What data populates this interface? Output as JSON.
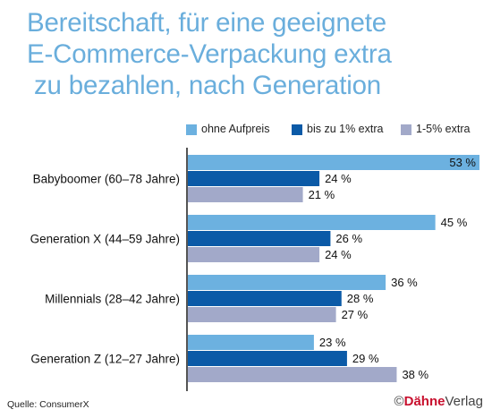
{
  "title_lines": [
    "Bereitschaft, für eine geeignete",
    "E-Commerce-Verpackung extra",
    "zu bezahlen, nach Generation"
  ],
  "source": "Quelle: ConsumerX",
  "brand": {
    "copyright": "©",
    "name_a": "Dähne",
    "name_b": "Verlag"
  },
  "colors": {
    "title": "#6aaedc",
    "brand_red": "#c8102e"
  },
  "chart_data": {
    "type": "bar",
    "orientation": "horizontal",
    "categories": [
      "Babyboomer (60–78 Jahre)",
      "Generation X (44–59 Jahre)",
      "Millennials (28–42 Jahre)",
      "Generation Z (12–27 Jahre)"
    ],
    "series": [
      {
        "name": "ohne Aufpreis",
        "color": "#6cb1e0",
        "values": [
          53,
          45,
          36,
          23
        ],
        "labels": [
          "53 %",
          "45 %",
          "36 %",
          "23 %"
        ]
      },
      {
        "name": "bis zu 1% extra",
        "color": "#0b5aa7",
        "values": [
          24,
          26,
          28,
          29
        ],
        "labels": [
          "24 %",
          "26 %",
          "28 %",
          "29 %"
        ]
      },
      {
        "name": "1-5% extra",
        "color": "#a2a9c9",
        "values": [
          21,
          24,
          27,
          38
        ],
        "labels": [
          "21 %",
          "24 %",
          "27 %",
          "38 %"
        ]
      }
    ],
    "xlim": [
      0,
      53
    ],
    "legend_position": "top-right",
    "grid": false
  }
}
